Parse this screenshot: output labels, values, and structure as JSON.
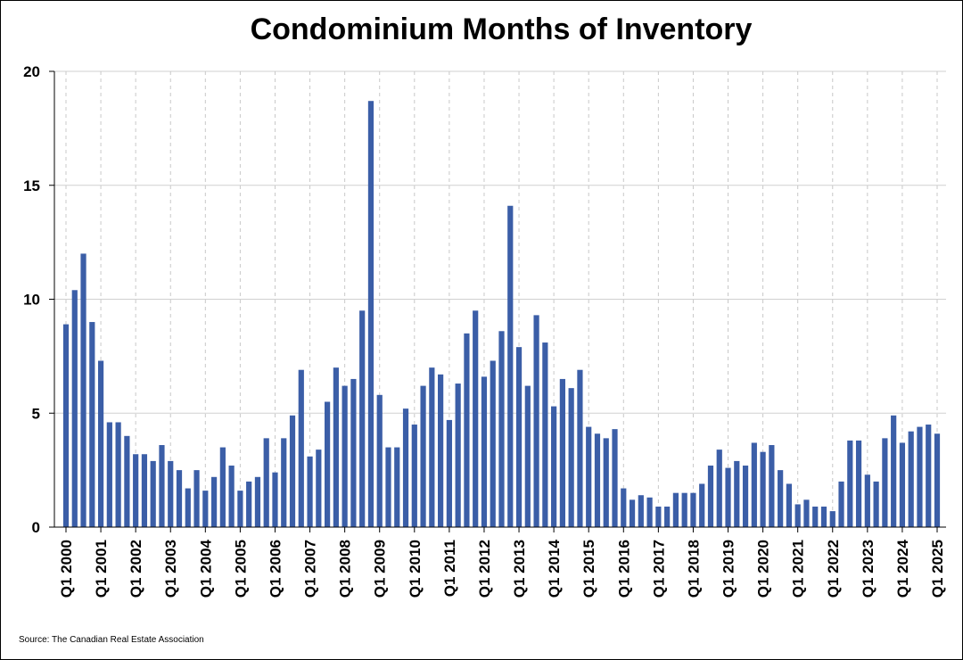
{
  "chart_data": {
    "type": "bar",
    "title": "Condominium Months of Inventory",
    "xlabel": "",
    "ylabel": "",
    "ylim": [
      0,
      20
    ],
    "yticks": [
      0,
      5,
      10,
      15,
      20
    ],
    "grid": {
      "horizontal": true,
      "vertical_dashed": true
    },
    "bar_color": "#3b5ea7",
    "x_tick_labels": [
      "Q1 2000",
      "Q1 2001",
      "Q1 2002",
      "Q1 2003",
      "Q1 2004",
      "Q1 2005",
      "Q1 2006",
      "Q1 2007",
      "Q1 2008",
      "Q1 2009",
      "Q1 2010",
      "Q1 2011",
      "Q1 2012",
      "Q1 2013",
      "Q1 2014",
      "Q1 2015",
      "Q1 2016",
      "Q1 2017",
      "Q1 2018",
      "Q1 2019",
      "Q1 2020",
      "Q1 2021",
      "Q1 2022",
      "Q1 2023",
      "Q1 2024",
      "Q1 2025"
    ],
    "start_period": "Q1 2000",
    "end_period": "Q1 2025",
    "values": [
      8.9,
      10.4,
      12.0,
      9.0,
      7.3,
      4.6,
      4.6,
      4.0,
      3.2,
      3.2,
      2.9,
      3.6,
      2.9,
      2.5,
      1.7,
      2.5,
      1.6,
      2.2,
      3.5,
      2.7,
      1.6,
      2.0,
      2.2,
      3.9,
      2.4,
      3.9,
      4.9,
      6.9,
      3.1,
      3.4,
      5.5,
      7.0,
      6.2,
      6.5,
      9.5,
      18.7,
      5.8,
      3.5,
      3.5,
      5.2,
      4.5,
      6.2,
      7.0,
      6.7,
      4.7,
      6.3,
      8.5,
      9.5,
      6.6,
      7.3,
      8.6,
      14.1,
      7.9,
      6.2,
      9.3,
      8.1,
      5.3,
      6.5,
      6.1,
      6.9,
      4.4,
      4.1,
      3.9,
      4.3,
      1.7,
      1.2,
      1.4,
      1.3,
      0.9,
      0.9,
      1.5,
      1.5,
      1.5,
      1.9,
      2.7,
      3.4,
      2.6,
      2.9,
      2.7,
      3.7,
      3.3,
      3.6,
      2.5,
      1.9,
      1.0,
      1.2,
      0.9,
      0.9,
      0.7,
      2.0,
      3.8,
      3.8,
      2.3,
      2.0,
      3.9,
      4.9,
      3.7,
      4.2,
      4.4,
      4.5,
      4.1
    ]
  },
  "source_note": "Source: The Canadian Real Estate Association"
}
